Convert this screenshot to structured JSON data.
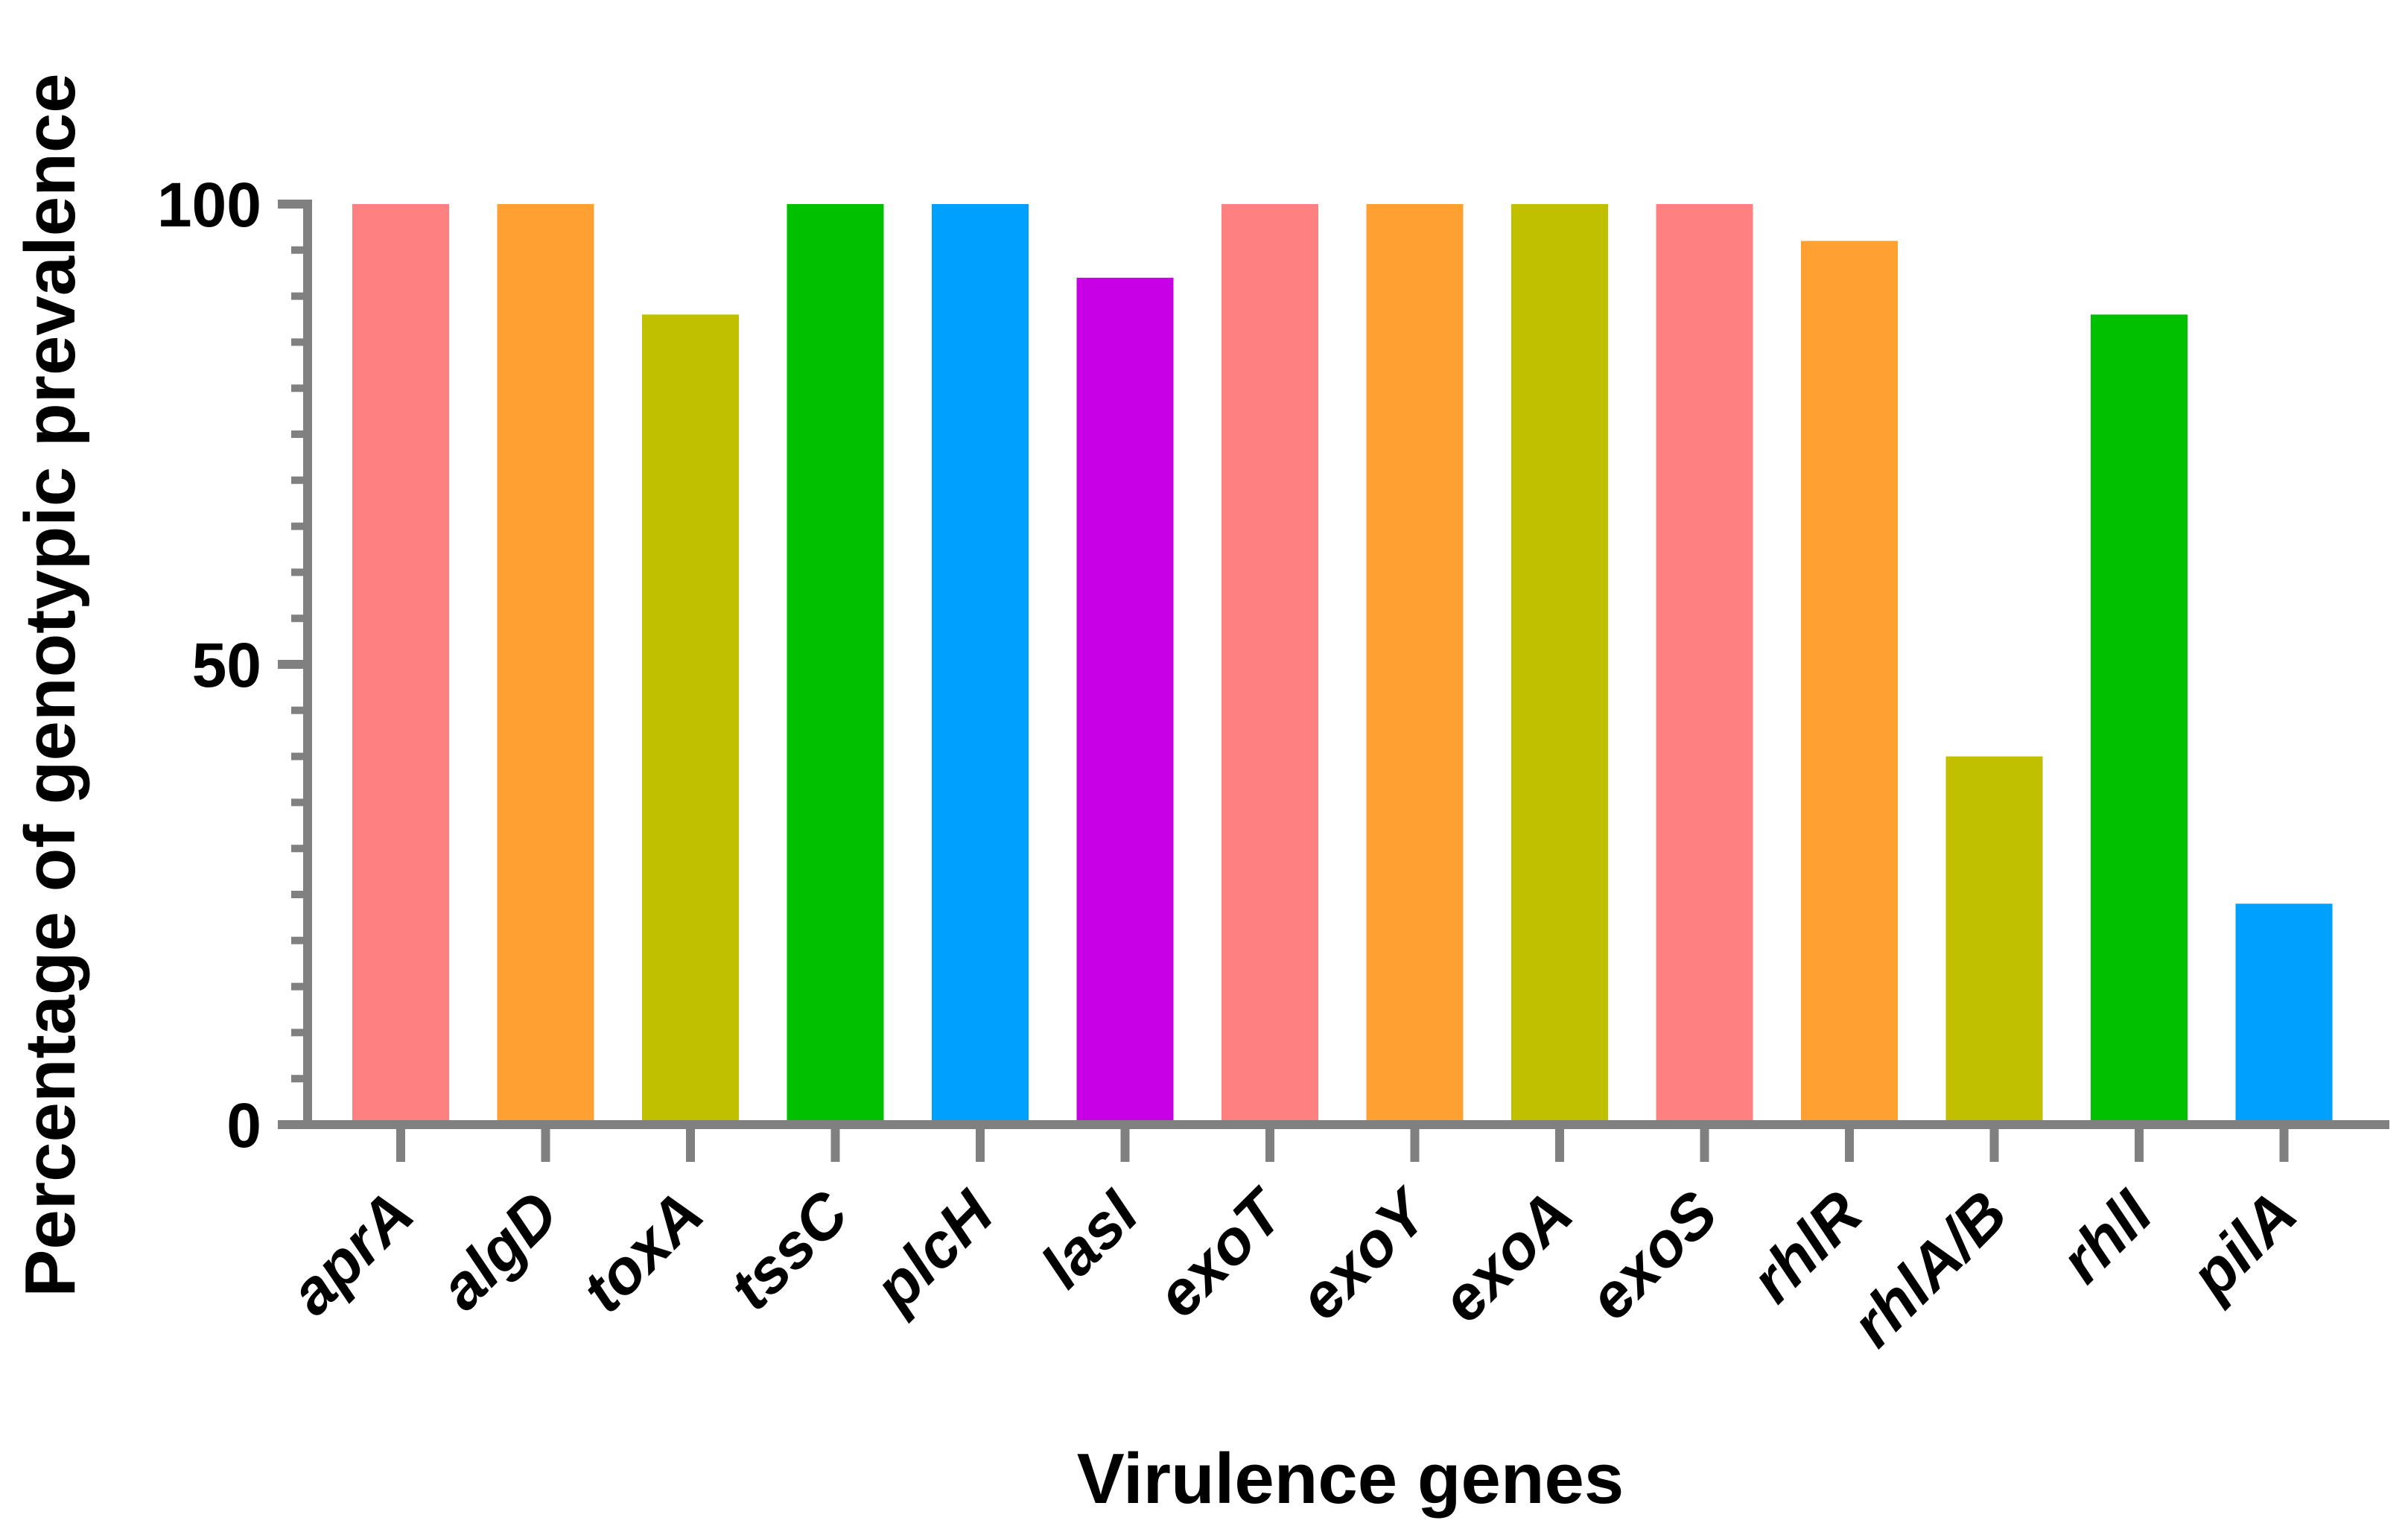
{
  "chart_data": {
    "type": "bar",
    "title": "",
    "xlabel": "Virulence genes",
    "ylabel": "Percentage of genotypic prevalence",
    "ylim": [
      0,
      100
    ],
    "yticks": [
      {
        "value": 0,
        "label": "0"
      },
      {
        "value": 50,
        "label": "50"
      },
      {
        "value": 100,
        "label": "100"
      }
    ],
    "minor_tick_step": 5,
    "categories": [
      "aprA",
      "algD",
      "toxA",
      "tssC",
      "plcH",
      "lasI",
      "exoT",
      "exoY",
      "exoA",
      "exoS",
      "rhlR",
      "rhlA/B",
      "rhlI",
      "pilA"
    ],
    "values": [
      100,
      100,
      88,
      100,
      100,
      92,
      100,
      100,
      100,
      100,
      96,
      40,
      88,
      24
    ],
    "colors": [
      "#FF8080",
      "#FFA033",
      "#C0C000",
      "#00C000",
      "#00A0FF",
      "#C800E6",
      "#FF8080",
      "#FFA033",
      "#C0C000",
      "#FF8080",
      "#FFA033",
      "#C0C000",
      "#00C000",
      "#00A0FF"
    ],
    "axis_color": "#808080",
    "grid": false,
    "legend": "none"
  }
}
